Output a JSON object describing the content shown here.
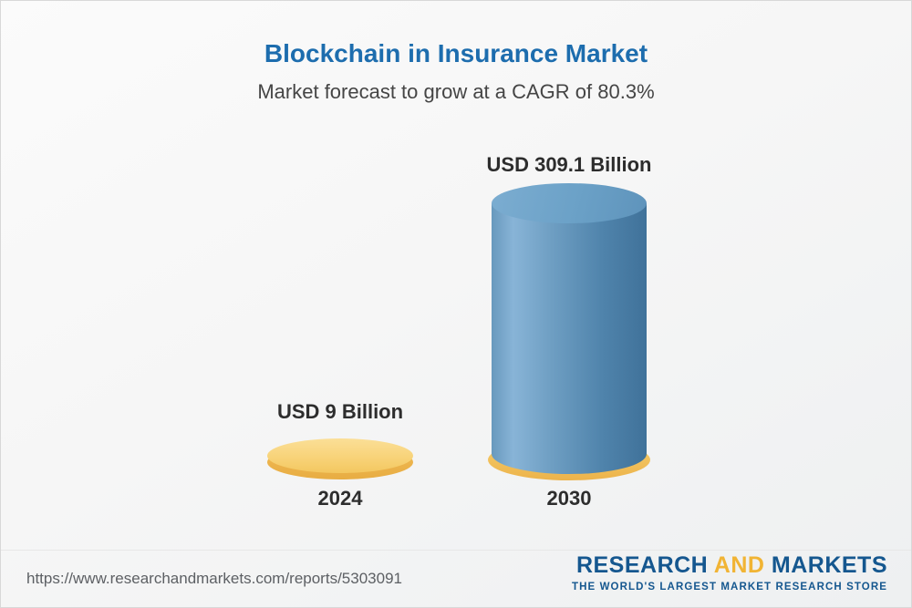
{
  "title": "Blockchain in Insurance Market",
  "subtitle": "Market forecast to grow at a CAGR of 80.3%",
  "chart_data": {
    "type": "bar",
    "style": "3d-cylinder",
    "title": "Blockchain in Insurance Market",
    "subtitle": "Market forecast to grow at a CAGR of 80.3%",
    "cagr_percent": 80.3,
    "categories": [
      "2024",
      "2030"
    ],
    "values": [
      9,
      309.1
    ],
    "unit": "USD Billion",
    "value_labels": [
      "USD 9 Billion",
      "USD 309.1 Billion"
    ],
    "ylim": [
      0,
      309.1
    ],
    "grid": false,
    "legend": false,
    "colors": {
      "bar_2024": "#F6CE6E",
      "bar_2030": "#4E86AE",
      "base_accent": "#F2C35C",
      "title_text": "#1D6DAE",
      "label_text": "#2D2D2D"
    }
  },
  "footer": {
    "url": "https://www.researchandmarkets.com/reports/5303091",
    "logo": {
      "research": "RESEARCH",
      "and": "AND",
      "markets": "MARKETS",
      "tagline": "THE WORLD'S LARGEST MARKET RESEARCH STORE",
      "blue": "#15578F",
      "gold": "#F1B434"
    }
  }
}
